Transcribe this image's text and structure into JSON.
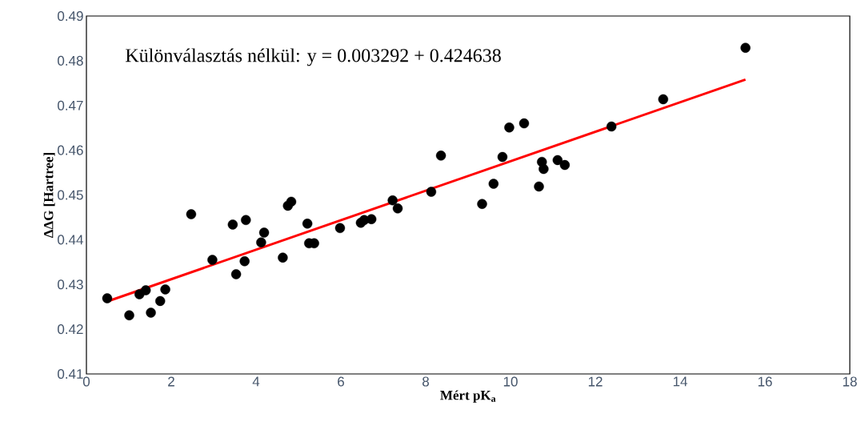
{
  "chart_data": {
    "type": "scatter",
    "xlabel": "Mért pK$_{a}$",
    "ylabel": "ΔΔG [Hartree]",
    "annotations": [
      "Különválasztás nélkül: y = 0.003292 + 0.424638"
    ],
    "xlim": [
      0,
      18
    ],
    "ylim": [
      0.41,
      0.49
    ],
    "xticks": [
      0,
      2,
      4,
      6,
      8,
      10,
      12,
      14,
      16,
      18
    ],
    "yticks": [
      0.41,
      0.42,
      0.43,
      0.44,
      0.45,
      0.46,
      0.47,
      0.48,
      0.49
    ],
    "grid": false,
    "series": [
      {
        "color": "#000000",
        "marker": "circle",
        "x": [
          0.49,
          1.01,
          1.25,
          1.4,
          1.52,
          1.74,
          1.86,
          2.47,
          2.97,
          3.45,
          3.53,
          3.73,
          3.76,
          4.12,
          4.19,
          4.63,
          4.75,
          4.83,
          5.21,
          5.25,
          5.37,
          5.98,
          6.47,
          6.55,
          6.72,
          7.22,
          7.34,
          8.13,
          8.36,
          9.33,
          9.6,
          9.81,
          9.97,
          10.32,
          10.67,
          10.74,
          10.78,
          11.11,
          11.28,
          12.38,
          13.6,
          15.54
        ],
        "values": [
          0.4269,
          0.4231,
          0.4278,
          0.4287,
          0.4237,
          0.4263,
          0.4289,
          0.4457,
          0.4355,
          0.4434,
          0.4323,
          0.4352,
          0.4444,
          0.4394,
          0.4416,
          0.436,
          0.4476,
          0.4485,
          0.4436,
          0.4392,
          0.4392,
          0.4426,
          0.4438,
          0.4444,
          0.4446,
          0.4488,
          0.447,
          0.4507,
          0.4588,
          0.448,
          0.4525,
          0.4585,
          0.4651,
          0.466,
          0.4519,
          0.4574,
          0.4558,
          0.4578,
          0.4567,
          0.4653,
          0.4714,
          0.4829
        ]
      },
      {
        "type": "line",
        "color": "#ff0000",
        "marker": "none",
        "line_style": "solid",
        "x": [
          0.49,
          15.54
        ],
        "values": [
          0.4262,
          0.4758
        ]
      }
    ]
  }
}
